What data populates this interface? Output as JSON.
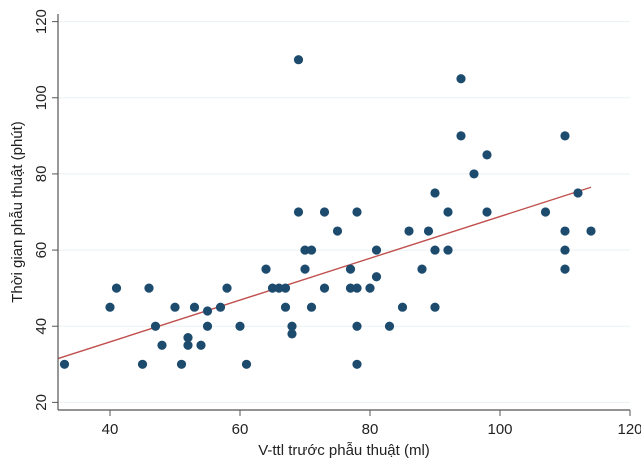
{
  "chart_data": {
    "type": "scatter",
    "title": "",
    "xlabel": "V-ttl trước phẫu thuật (ml)",
    "ylabel": "Thời gian phẫu thuật (phút)",
    "xlim": [
      32,
      120
    ],
    "ylim": [
      18,
      122
    ],
    "xticks": [
      40,
      60,
      80,
      100,
      120
    ],
    "yticks": [
      20,
      40,
      60,
      80,
      100,
      120
    ],
    "grid": true,
    "legend": "none",
    "colors": {
      "point": "#1c4b6e",
      "fit_line": "#c0504d",
      "plot_bg": "#ffffff",
      "grid": "#eaf1f5"
    },
    "points": [
      [
        33,
        30
      ],
      [
        40,
        45
      ],
      [
        41,
        50
      ],
      [
        45,
        30
      ],
      [
        46,
        50
      ],
      [
        47,
        40
      ],
      [
        48,
        35
      ],
      [
        50,
        45
      ],
      [
        51,
        30
      ],
      [
        52,
        35
      ],
      [
        52,
        37
      ],
      [
        53,
        45
      ],
      [
        54,
        35
      ],
      [
        55,
        40
      ],
      [
        55,
        44
      ],
      [
        57,
        45
      ],
      [
        58,
        50
      ],
      [
        60,
        40
      ],
      [
        61,
        30
      ],
      [
        64,
        55
      ],
      [
        65,
        50
      ],
      [
        66,
        50
      ],
      [
        67,
        45
      ],
      [
        67,
        50
      ],
      [
        68,
        38
      ],
      [
        68,
        40
      ],
      [
        69,
        110
      ],
      [
        69,
        70
      ],
      [
        70,
        55
      ],
      [
        70,
        60
      ],
      [
        71,
        60
      ],
      [
        71,
        45
      ],
      [
        73,
        70
      ],
      [
        73,
        50
      ],
      [
        75,
        65
      ],
      [
        77,
        55
      ],
      [
        77,
        50
      ],
      [
        78,
        50
      ],
      [
        78,
        30
      ],
      [
        78,
        40
      ],
      [
        78,
        70
      ],
      [
        80,
        50
      ],
      [
        81,
        53
      ],
      [
        81,
        60
      ],
      [
        83,
        40
      ],
      [
        85,
        45
      ],
      [
        86,
        65
      ],
      [
        88,
        55
      ],
      [
        89,
        65
      ],
      [
        90,
        75
      ],
      [
        90,
        60
      ],
      [
        90,
        45
      ],
      [
        92,
        60
      ],
      [
        92,
        70
      ],
      [
        94,
        105
      ],
      [
        94,
        90
      ],
      [
        96,
        80
      ],
      [
        98,
        70
      ],
      [
        98,
        85
      ],
      [
        107,
        70
      ],
      [
        110,
        90
      ],
      [
        110,
        65
      ],
      [
        110,
        60
      ],
      [
        110,
        55
      ],
      [
        112,
        75
      ],
      [
        114,
        65
      ]
    ],
    "fit_line": {
      "x": [
        32,
        114
      ],
      "y": [
        31.5,
        76.5
      ]
    }
  }
}
